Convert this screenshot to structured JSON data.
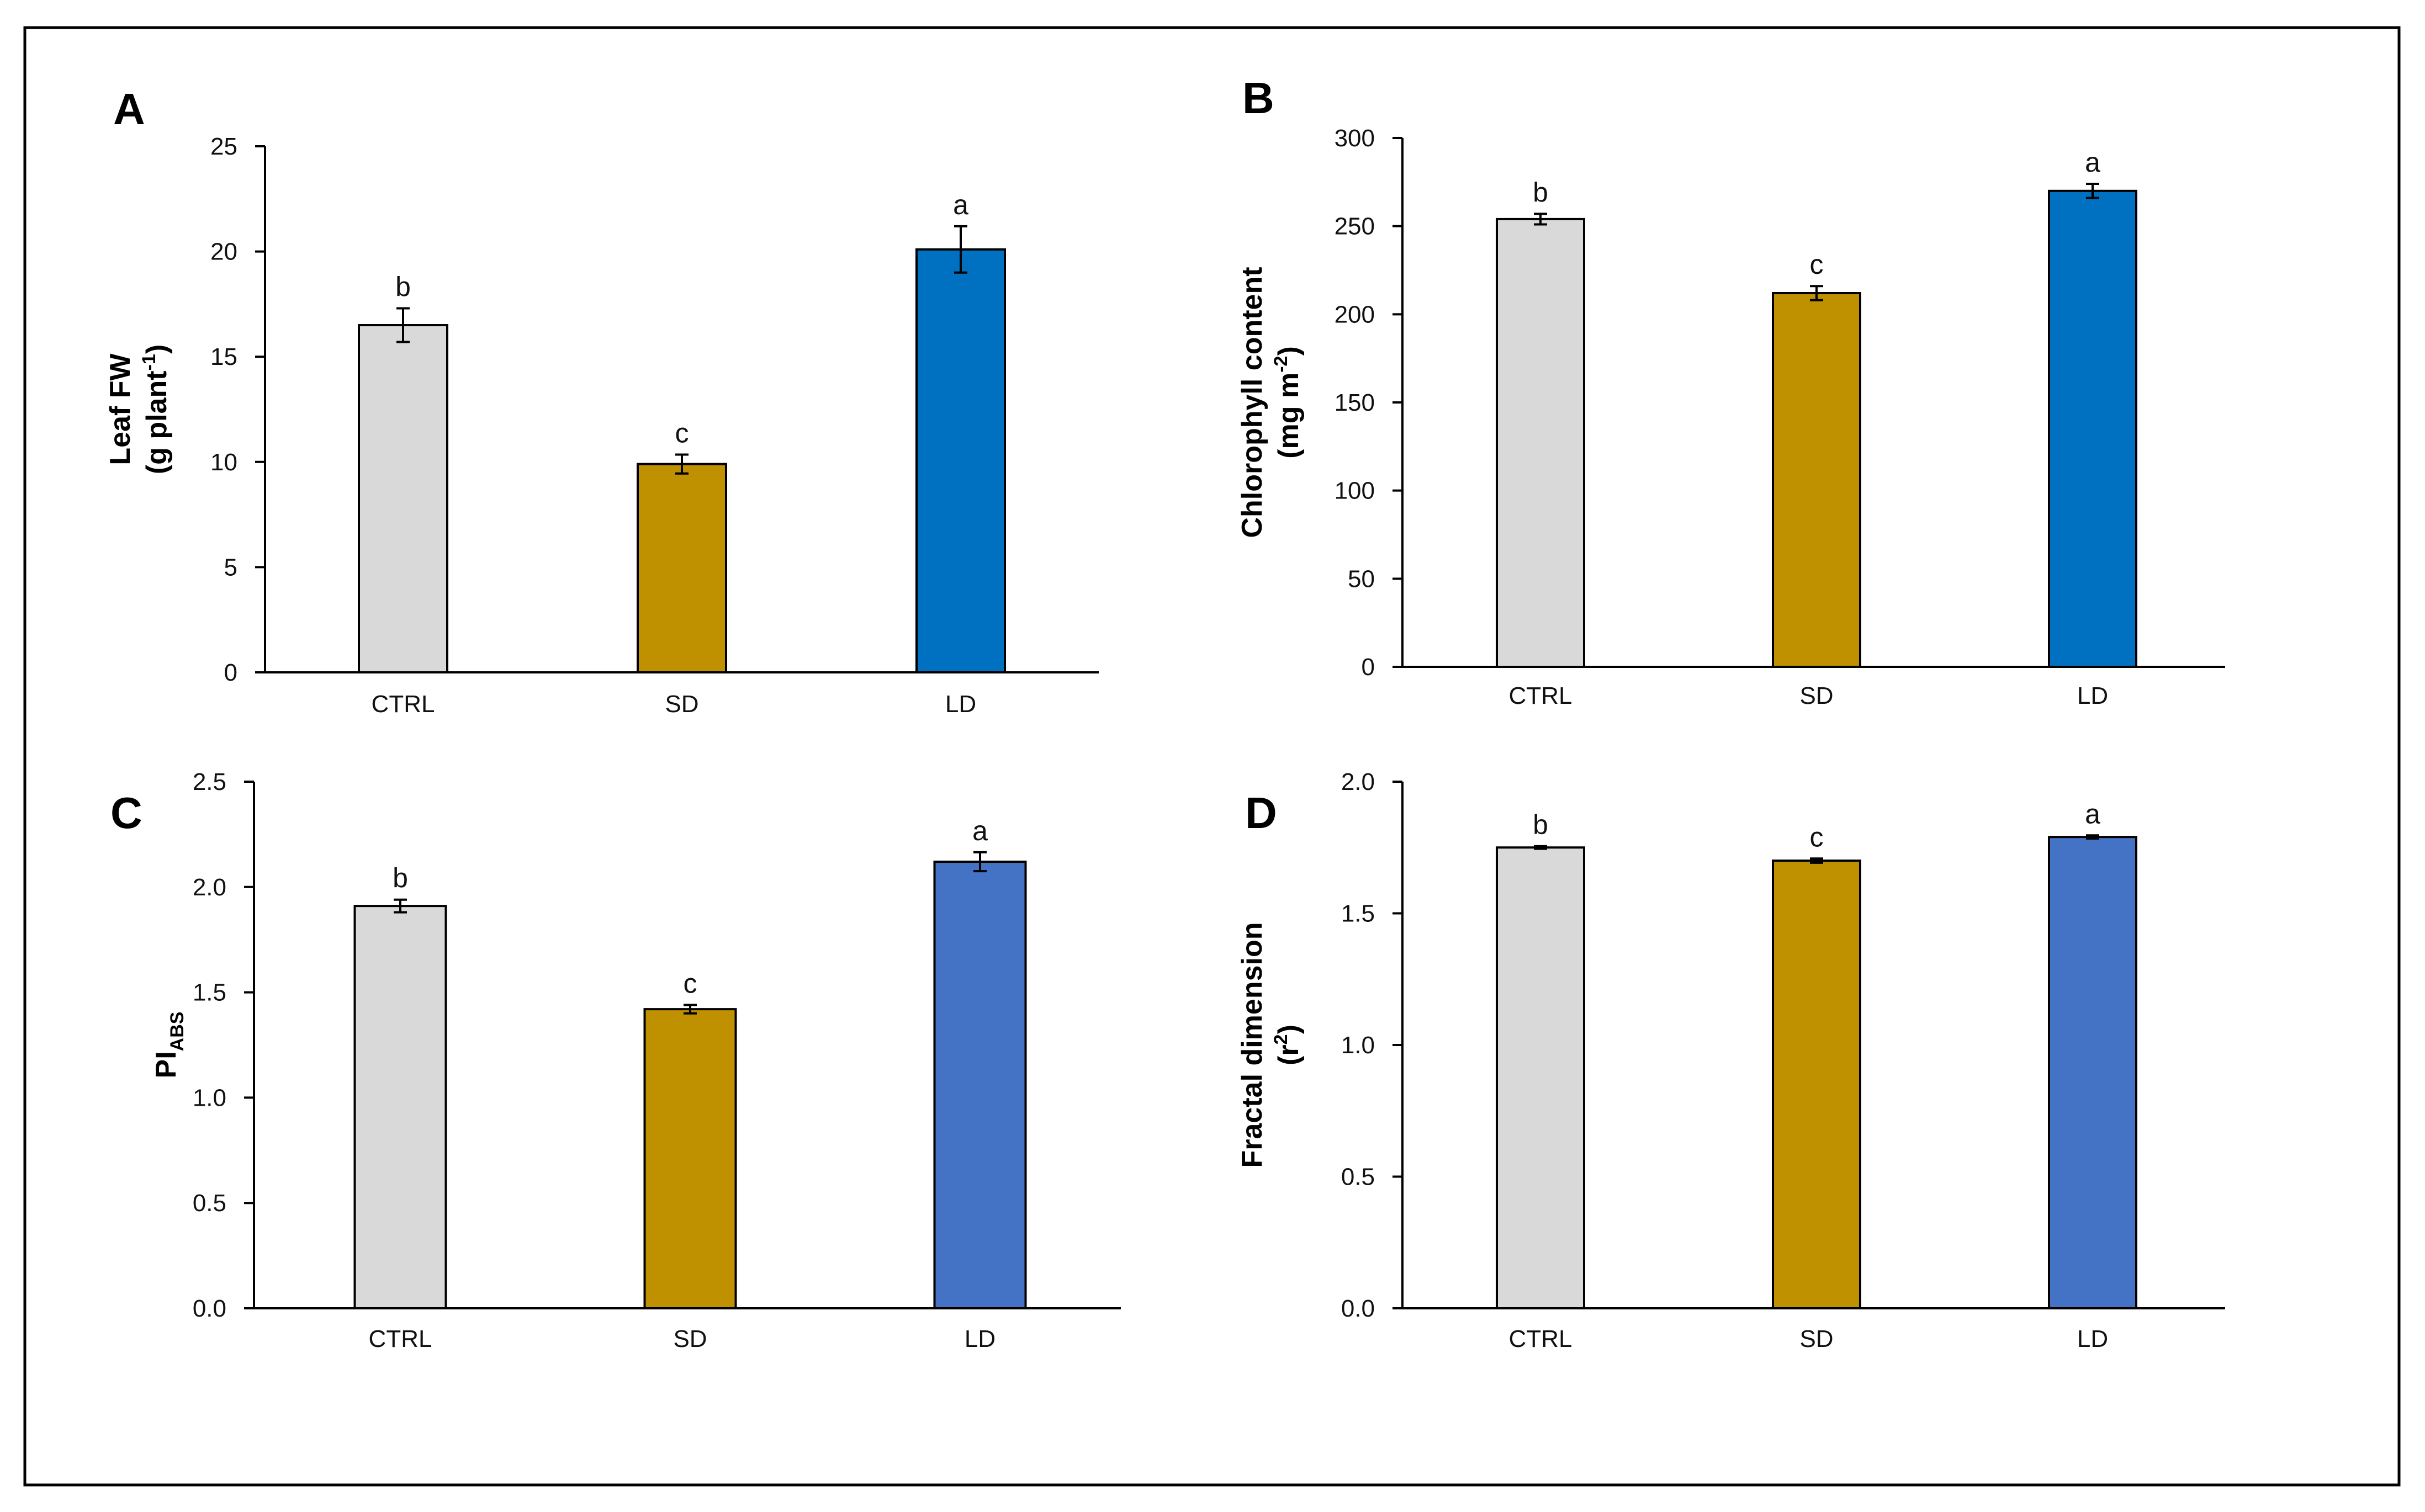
{
  "chart_data": [
    {
      "panel": "A",
      "type": "bar",
      "categories": [
        "CTRL",
        "SD",
        "LD"
      ],
      "values": [
        16.5,
        9.9,
        20.1
      ],
      "errors": [
        0.8,
        0.45,
        1.1
      ],
      "letters": [
        "b",
        "c",
        "a"
      ],
      "colors": [
        "#d9d9d9",
        "#bf9000",
        "#0070c0"
      ],
      "ylabel_lines": [
        {
          "text": "Leaf FW"
        },
        {
          "text": "(g plant",
          "sup": "-1",
          "after": ")"
        }
      ],
      "ylim": [
        0,
        25
      ],
      "yticks": [
        0,
        5,
        10,
        15,
        20,
        25
      ],
      "ytick_labels": [
        "0",
        "5",
        "10",
        "15",
        "20",
        "25"
      ]
    },
    {
      "panel": "B",
      "type": "bar",
      "categories": [
        "CTRL",
        "SD",
        "LD"
      ],
      "values": [
        254,
        212,
        270
      ],
      "errors": [
        3,
        4,
        4
      ],
      "letters": [
        "b",
        "c",
        "a"
      ],
      "colors": [
        "#d9d9d9",
        "#bf9000",
        "#0070c0"
      ],
      "ylabel_lines": [
        {
          "text": "Chlorophyll content"
        },
        {
          "text": "(mg m",
          "sup": "-2",
          "after": ")"
        }
      ],
      "ylim": [
        0,
        300
      ],
      "yticks": [
        0,
        50,
        100,
        150,
        200,
        250,
        300
      ],
      "ytick_labels": [
        "0",
        "50",
        "100",
        "150",
        "200",
        "250",
        "300"
      ]
    },
    {
      "panel": "C",
      "type": "bar",
      "categories": [
        "CTRL",
        "SD",
        "LD"
      ],
      "values": [
        1.91,
        1.42,
        2.12
      ],
      "errors": [
        0.03,
        0.02,
        0.045
      ],
      "letters": [
        "b",
        "c",
        "a"
      ],
      "colors": [
        "#d9d9d9",
        "#bf9000",
        "#4472c4"
      ],
      "ylabel_lines": [
        {
          "text": "PI",
          "sub": "ABS"
        }
      ],
      "ylim": [
        0,
        2.5
      ],
      "yticks": [
        0,
        0.5,
        1.0,
        1.5,
        2.0,
        2.5
      ],
      "ytick_labels": [
        "0.0",
        "0.5",
        "1.0",
        "1.5",
        "2.0",
        "2.5"
      ]
    },
    {
      "panel": "D",
      "type": "bar",
      "categories": [
        "CTRL",
        "SD",
        "LD"
      ],
      "values": [
        1.75,
        1.7,
        1.79
      ],
      "errors": [
        0.005,
        0.008,
        0.006
      ],
      "letters": [
        "b",
        "c",
        "a"
      ],
      "colors": [
        "#d9d9d9",
        "#bf9000",
        "#4472c4"
      ],
      "ylabel_lines": [
        {
          "text": "Fractal dimension"
        },
        {
          "text": "(r",
          "sup": "2",
          "after": ")"
        }
      ],
      "ylim": [
        0,
        2.0
      ],
      "yticks": [
        0,
        0.5,
        1.0,
        1.5,
        2.0
      ],
      "ytick_labels": [
        "0.0",
        "0.5",
        "1.0",
        "1.5",
        "2.0"
      ]
    }
  ]
}
